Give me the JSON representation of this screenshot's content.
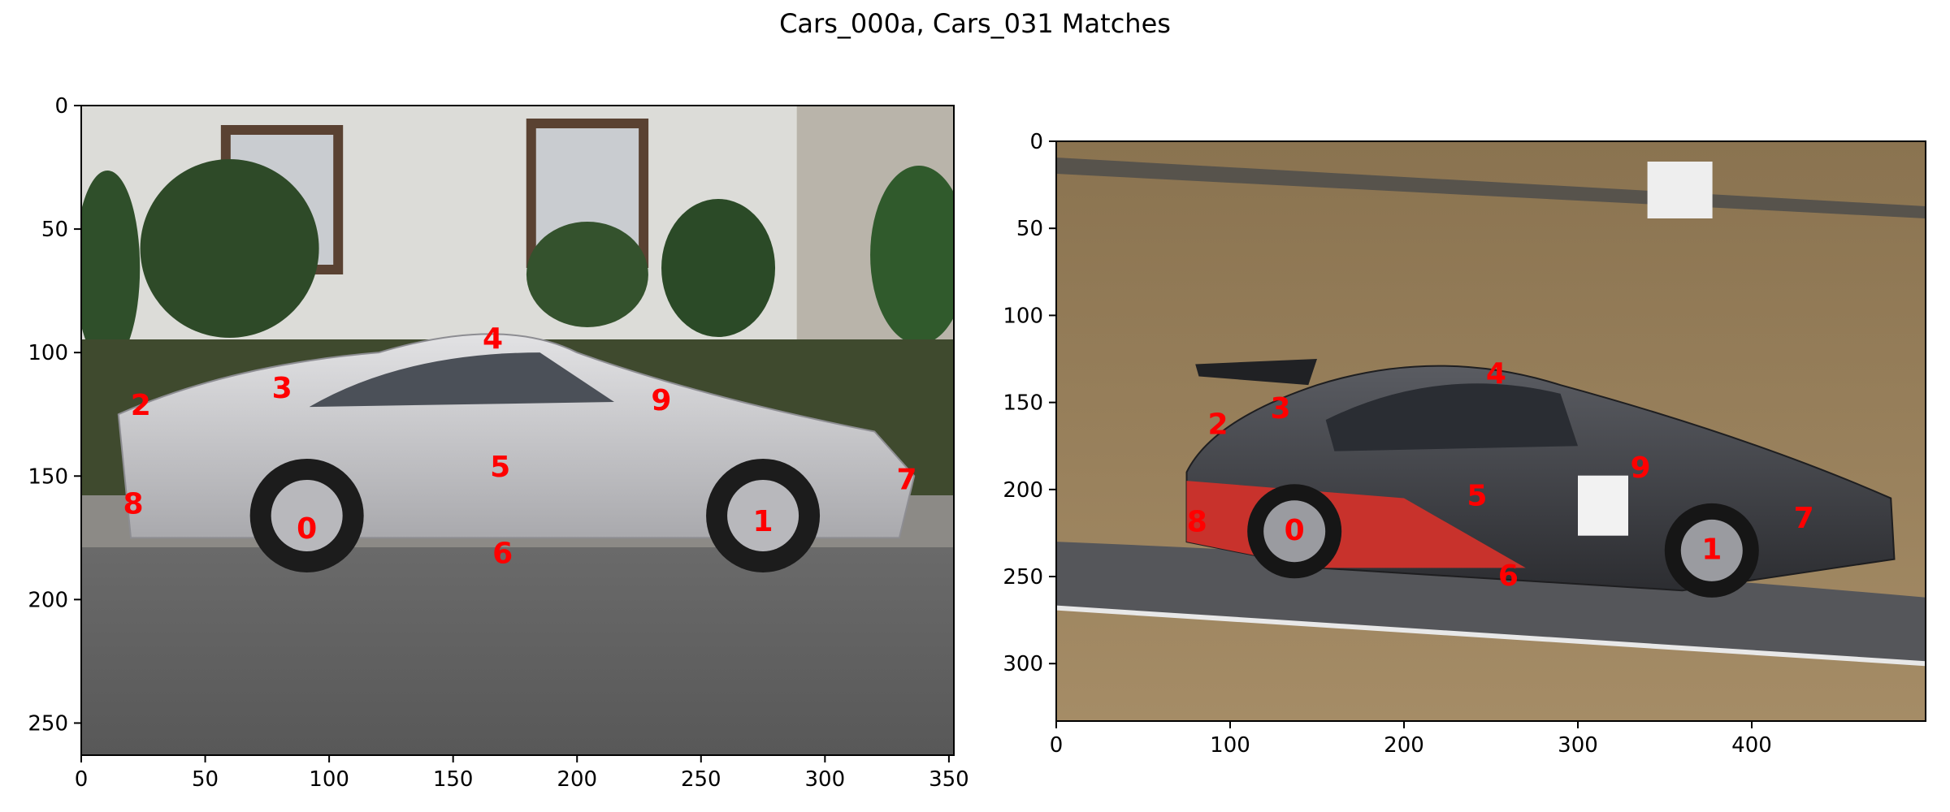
{
  "title": "Cars_000a, Cars_031 Matches",
  "colors": {
    "keypoint": "#ff0000",
    "axis": "#000000"
  },
  "chart_data": [
    {
      "type": "scatter",
      "name": "Cars_000a",
      "image": "silver Porsche sports car parked in front of a white house with hedge",
      "xlim": [
        0,
        352
      ],
      "ylim": [
        263,
        0
      ],
      "xticks": [
        0,
        50,
        100,
        150,
        200,
        250,
        300,
        350
      ],
      "yticks": [
        0,
        50,
        100,
        150,
        200,
        250
      ],
      "points": [
        {
          "label": "0",
          "x": 91,
          "y": 171
        },
        {
          "label": "1",
          "x": 275,
          "y": 168
        },
        {
          "label": "2",
          "x": 24,
          "y": 121
        },
        {
          "label": "3",
          "x": 81,
          "y": 114
        },
        {
          "label": "4",
          "x": 166,
          "y": 94
        },
        {
          "label": "5",
          "x": 169,
          "y": 146
        },
        {
          "label": "6",
          "x": 170,
          "y": 181
        },
        {
          "label": "7",
          "x": 333,
          "y": 151
        },
        {
          "label": "8",
          "x": 21,
          "y": 161
        },
        {
          "label": "9",
          "x": 234,
          "y": 119
        }
      ]
    },
    {
      "type": "scatter",
      "name": "Cars_031",
      "image": "grey and red BMW race car number 33 on a race track",
      "xlim": [
        0,
        500
      ],
      "ylim": [
        333,
        0
      ],
      "xticks": [
        0,
        100,
        200,
        300,
        400
      ],
      "yticks": [
        0,
        50,
        100,
        150,
        200,
        250,
        300
      ],
      "points": [
        {
          "label": "0",
          "x": 137,
          "y": 223
        },
        {
          "label": "1",
          "x": 377,
          "y": 234
        },
        {
          "label": "2",
          "x": 93,
          "y": 162
        },
        {
          "label": "3",
          "x": 129,
          "y": 153
        },
        {
          "label": "4",
          "x": 253,
          "y": 133
        },
        {
          "label": "5",
          "x": 242,
          "y": 203
        },
        {
          "label": "6",
          "x": 260,
          "y": 249
        },
        {
          "label": "7",
          "x": 430,
          "y": 216
        },
        {
          "label": "8",
          "x": 81,
          "y": 218
        },
        {
          "label": "9",
          "x": 336,
          "y": 187
        }
      ]
    }
  ]
}
